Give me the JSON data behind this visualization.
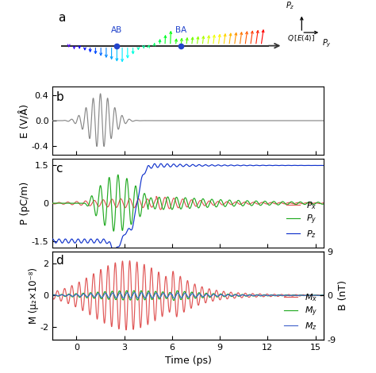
{
  "title_a": "a",
  "title_b": "b",
  "title_c": "c",
  "title_d": "d",
  "xlabel": "Time (ps)",
  "ylabel_b": "E (V/Å)",
  "ylabel_c": "P (pC/m)",
  "ylabel_d": "M (μ₂×10⁻⁸)",
  "ylabel_d2": "B (nT)",
  "xmin": -1.5,
  "xmax": 15.5,
  "xticks": [
    0,
    3,
    6,
    9,
    12,
    15
  ],
  "E_ylim": [
    -0.55,
    0.55
  ],
  "E_yticks": [
    -0.4,
    0.0,
    0.4
  ],
  "P_ylim": [
    -1.75,
    1.75
  ],
  "P_yticks": [
    -1.5,
    0.0,
    1.5
  ],
  "M_ylim": [
    -2.8,
    2.8
  ],
  "M_yticks": [
    -2,
    0,
    2
  ],
  "B_yticks": [
    -9,
    0,
    9
  ],
  "color_E": "#888888",
  "color_Px": "#e05555",
  "color_Py": "#22aa22",
  "color_Pz": "#1133cc",
  "color_Mx": "#e05555",
  "color_My": "#22aa22",
  "color_Mz": "#4466cc",
  "fig_bg": "#ffffff",
  "panel_bg": "#ffffff",
  "label_fontsize": 9,
  "tick_fontsize": 8,
  "legend_fontsize": 8,
  "panel_label_fontsize": 11
}
